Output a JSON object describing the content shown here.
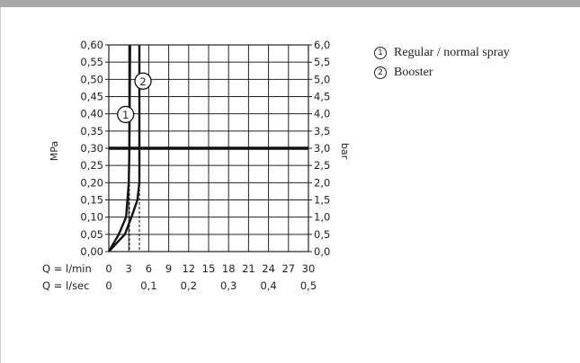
{
  "chart_data": {
    "type": "line",
    "xlabel": "Q = l/min",
    "xlabel2": "Q = l/sec",
    "ylabel_left": "MPa",
    "ylabel_right": "bar",
    "x_ticks": [
      "0",
      "3",
      "6",
      "9",
      "12",
      "15",
      "18",
      "21",
      "24",
      "27",
      "30"
    ],
    "x2_ticks": [
      "0",
      "0,1",
      "0,2",
      "0,3",
      "0,4",
      "0,5"
    ],
    "y_ticks_left": [
      "0,00",
      "0,05",
      "0,10",
      "0,15",
      "0,20",
      "0,25",
      "0,30",
      "0,35",
      "0,40",
      "0,45",
      "0,50",
      "0,55",
      "0,60"
    ],
    "y_ticks_right": [
      "0,0",
      "0,5",
      "1,0",
      "1,5",
      "2,0",
      "2,5",
      "3,0",
      "3,5",
      "4,0",
      "4,5",
      "5,0",
      "5,5",
      "6,0"
    ],
    "xlim": [
      0,
      30
    ],
    "ylim": [
      0,
      0.6
    ],
    "grid": true,
    "reference_line": {
      "y": 0.3
    },
    "series": [
      {
        "marker": "1",
        "name": "Regular / normal spray",
        "points": [
          [
            0,
            0
          ],
          [
            1.5,
            0.05
          ],
          [
            2.6,
            0.1
          ],
          [
            3.0,
            0.2
          ],
          [
            3.1,
            0.3
          ],
          [
            3.2,
            0.6
          ]
        ],
        "reference_x": 3.1
      },
      {
        "marker": "2",
        "name": "Booster",
        "points": [
          [
            0,
            0
          ],
          [
            2.4,
            0.05
          ],
          [
            3.4,
            0.1
          ],
          [
            4.3,
            0.15
          ],
          [
            4.6,
            0.2
          ],
          [
            4.6,
            0.3
          ],
          [
            4.6,
            0.6
          ]
        ],
        "reference_x": 4.6
      }
    ],
    "legend": {
      "position": "right"
    }
  }
}
